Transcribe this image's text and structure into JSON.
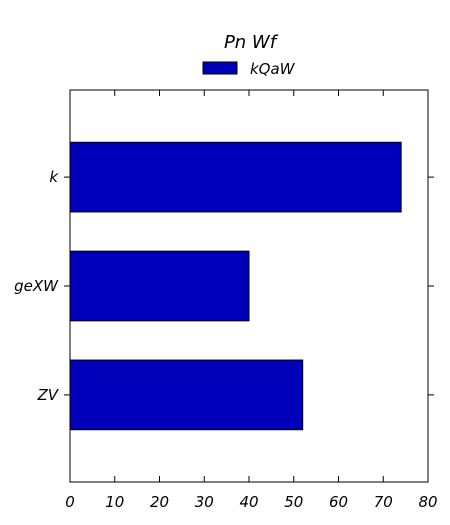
{
  "chart_data": {
    "type": "bar",
    "orientation": "horizontal",
    "title": "Pn Wf",
    "xlabel": "",
    "ylabel": "",
    "categories": [
      "ZV",
      "geXW",
      "k"
    ],
    "series": [
      {
        "name": "kQaW",
        "values": [
          52,
          40,
          74
        ],
        "color": "#0000bb"
      }
    ],
    "xlim": [
      0,
      80
    ],
    "xticks": [
      0,
      10,
      20,
      30,
      40,
      50,
      60,
      70,
      80
    ],
    "grid": false,
    "legend_position": "top-center"
  }
}
